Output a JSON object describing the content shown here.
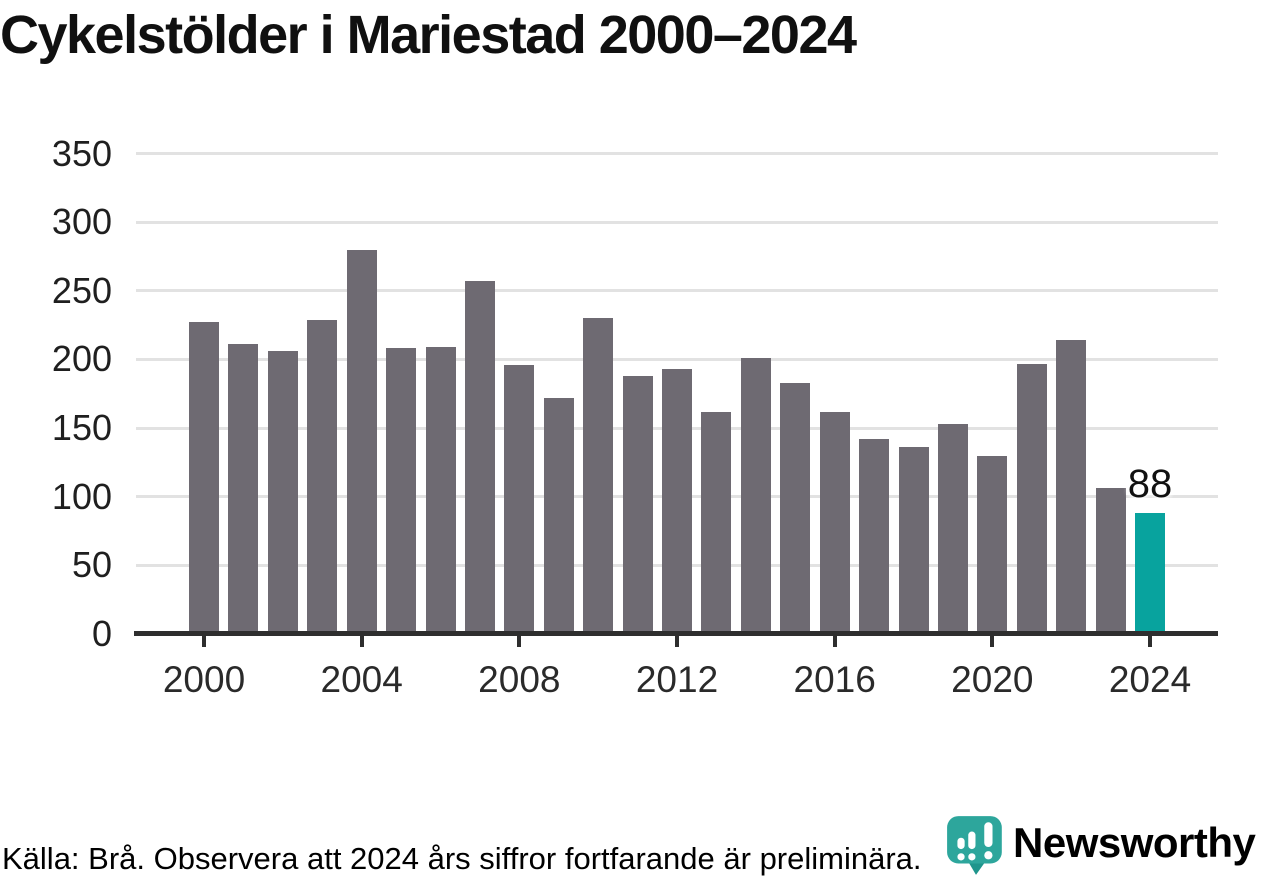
{
  "title": "Cykelstölder i Mariestad 2000–2024",
  "chart_data": {
    "type": "bar",
    "title": "Cykelstölder i Mariestad 2000–2024",
    "x": [
      2000,
      2001,
      2002,
      2003,
      2004,
      2005,
      2006,
      2007,
      2008,
      2009,
      2010,
      2011,
      2012,
      2013,
      2014,
      2015,
      2016,
      2017,
      2018,
      2019,
      2020,
      2021,
      2022,
      2023,
      2024
    ],
    "values": [
      227,
      211,
      206,
      229,
      280,
      208,
      209,
      257,
      196,
      172,
      230,
      188,
      193,
      162,
      201,
      183,
      162,
      142,
      136,
      153,
      130,
      197,
      214,
      106,
      88
    ],
    "highlight_index": 24,
    "value_label": "88",
    "xticks": [
      2000,
      2004,
      2008,
      2012,
      2016,
      2020,
      2024
    ],
    "yticks": [
      0,
      50,
      100,
      150,
      200,
      250,
      300,
      350
    ],
    "ylim": [
      0,
      350
    ],
    "grid": "horizontal-only",
    "legend": "none",
    "xlabel": "",
    "ylabel": ""
  },
  "footer": {
    "source_note": "Källa: Brå. Observera att 2024 års siffror fortfarande är preliminära."
  },
  "logo": {
    "text": "Newsworthy"
  },
  "colors": {
    "bar": "#6e6a72",
    "highlight": "#08a39e",
    "gridline": "#e2e2e2",
    "axis": "#2e2e2e",
    "y_tick_label": "#1f1f1f",
    "x_tick_label": "#2a2a2a",
    "title": "#101010",
    "footer_text": "#6e6e73",
    "logo_text": "#33a79e",
    "logo_icon": "#2da69c",
    "logo_icon_tail": "#1f958c"
  }
}
